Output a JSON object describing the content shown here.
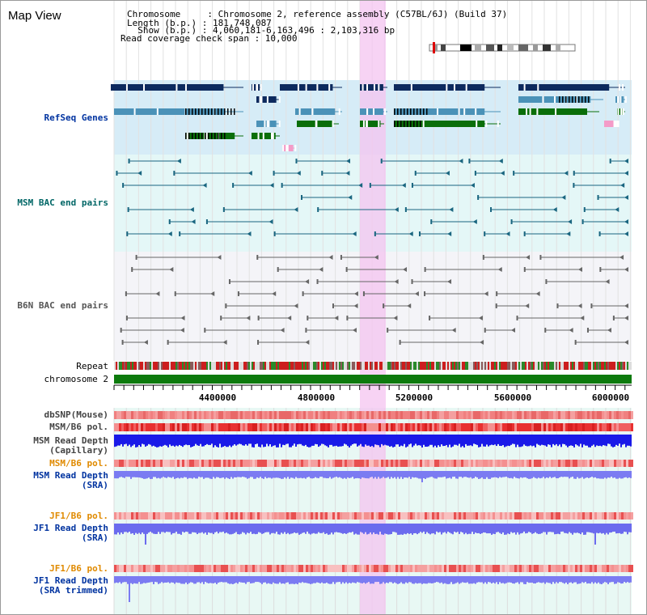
{
  "title": "Map View",
  "info": {
    "line1": "Chromosome     : Chromosome 2, reference assembly (C57BL/6J) (Build 37)",
    "line2": "Length (b.p.) : 181,748,087",
    "line3": "  Show (b.p.) : 4,060,181-6,163,496 : 2,103,316 bp",
    "line4": "Read coverage check span : 10,000"
  },
  "tracks": {
    "refseq": "RefSeq Genes",
    "msm_bac": "MSM BAC end pairs",
    "b6n_bac": "B6N BAC end pairs",
    "repeat": "Repeat",
    "chromosome": "chromosome 2",
    "dbsnp": "dbSNP(Mouse)",
    "msm_b6_pol": "MSM/B6 pol.",
    "msm_depth_cap_1": "MSM Read Depth",
    "msm_depth_cap_2": "(Capillary)",
    "msm_b6_pol2": "MSM/B6 pol.",
    "msm_depth_sra_1": "MSM Read Depth",
    "msm_depth_sra_2": "(SRA)",
    "jf1_b6_pol": "JF1/B6 pol.",
    "jf1_depth_sra_1": "JF1 Read Depth",
    "jf1_depth_sra_2": "(SRA)",
    "jf1_b6_pol2": "JF1/B6 pol.",
    "jf1_depth_trim_1": "JF1 Read Depth",
    "jf1_depth_trim_2": "(SRA trimmed)"
  },
  "axis_ticks": [
    "4400000",
    "4800000",
    "5200000",
    "5600000",
    "6000000"
  ],
  "colors": {
    "refseq_bg": "#d6ecf7",
    "msm_bg": "#e4f7f7",
    "b6n_bg": "#f4f4f8",
    "highlight": "#f4c4f0",
    "navy": "#0d2a5e",
    "steel": "#4b92b8",
    "green": "#0a6e0a",
    "pink": "#f49bc8",
    "teal": "#1a6680",
    "gray": "#666666",
    "label_blue": "#0033a0",
    "label_teal": "#006666",
    "label_orange": "#e08a00"
  }
}
